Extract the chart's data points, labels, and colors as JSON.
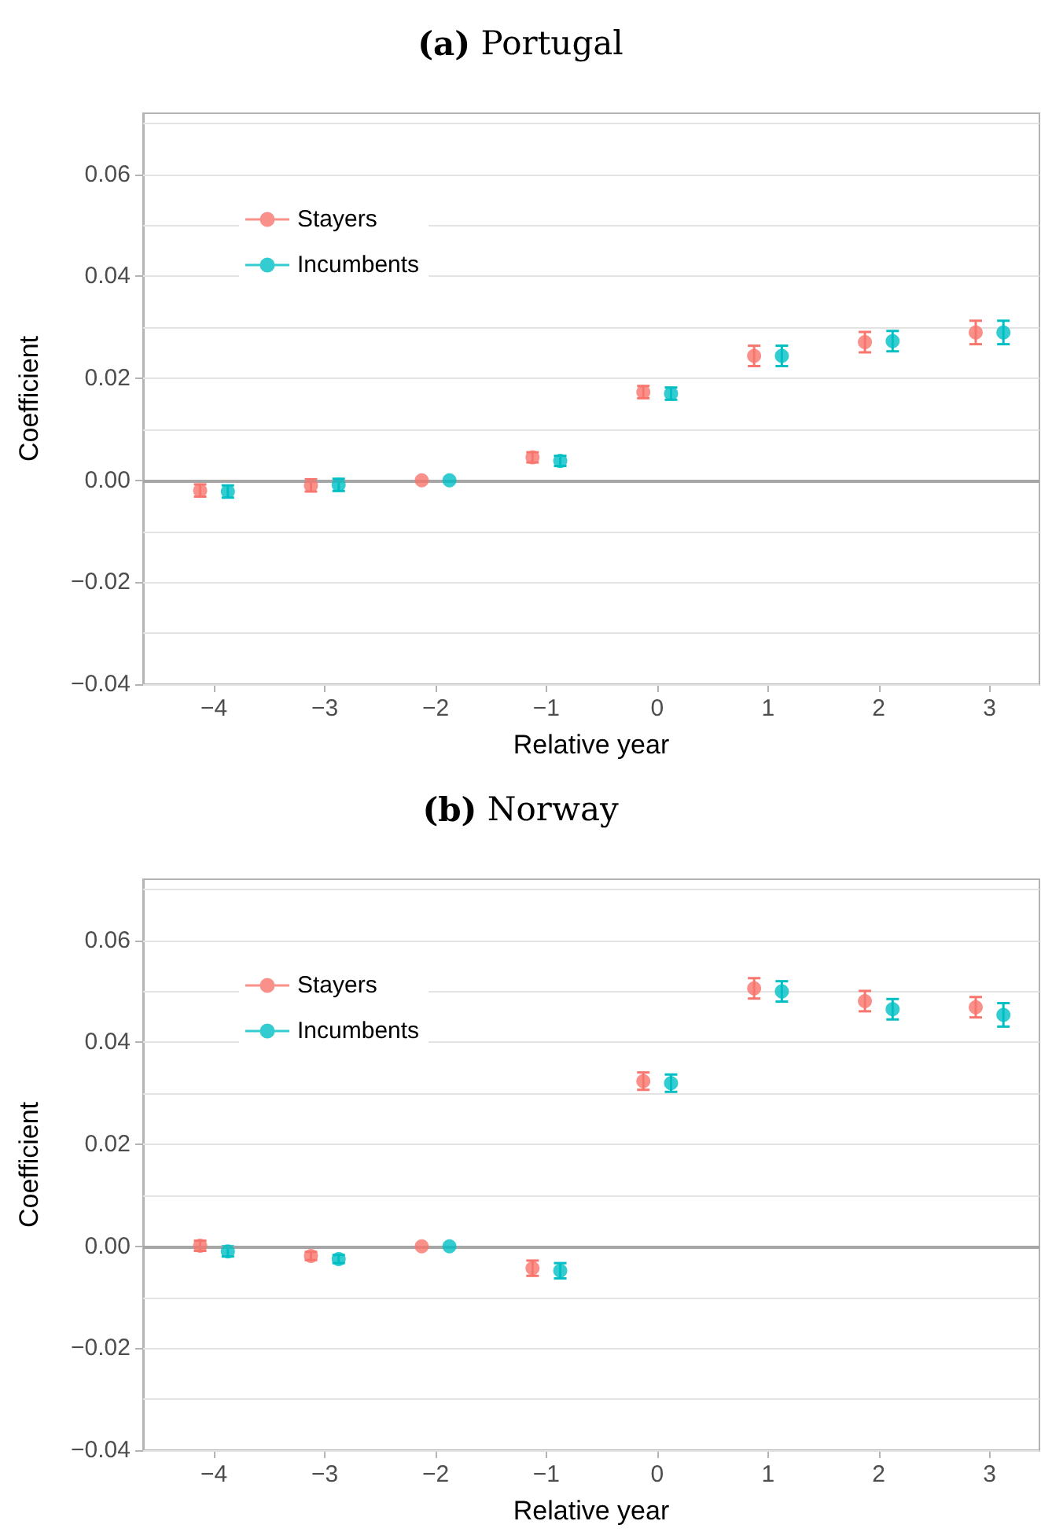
{
  "chart_data": [
    {
      "type": "scatter",
      "title": "(a) Portugal",
      "xlabel": "Relative year",
      "ylabel": "Coefficient",
      "marker": "circle",
      "grid": "y",
      "legend": "top left",
      "xlim": [
        -4.64,
        3.45
      ],
      "xticks": [
        {
          "value": -4,
          "label": "−4"
        },
        {
          "value": -3,
          "label": "−3"
        },
        {
          "value": -2,
          "label": "−2"
        },
        {
          "value": -1,
          "label": "−1"
        },
        0,
        1,
        2,
        3
      ],
      "ylim": [
        -0.04,
        0.072
      ],
      "yticks": [
        {
          "value": -0.04,
          "label": "−0.04"
        },
        {
          "value": -0.03,
          "label": null
        },
        {
          "value": -0.02,
          "label": "−0.02"
        },
        {
          "value": -0.01,
          "label": null
        },
        {
          "value": 0,
          "label": "0.00"
        },
        {
          "value": 0.01,
          "label": null
        },
        {
          "value": 0.02,
          "label": "0.02"
        },
        {
          "value": 0.03,
          "label": null
        },
        {
          "value": 0.04,
          "label": "0.04"
        },
        {
          "value": 0.05,
          "label": null
        },
        {
          "value": 0.06,
          "label": "0.06"
        },
        {
          "value": 0.07,
          "label": null
        }
      ],
      "ref_lines": [
        {
          "axis": "y",
          "value": 0,
          "color": "#a6a6a6"
        }
      ],
      "series": [
        {
          "name": "Stayers",
          "color": "#f8766d",
          "x": [
            -4.125,
            -3.125,
            -2.125,
            -1.125,
            -0.125,
            0.875,
            1.875,
            2.875
          ],
          "values": [
            -0.002,
            -0.001,
            0,
            0.0045,
            0.0173,
            0.0244,
            0.0271,
            0.029
          ],
          "errors": [
            0.0012,
            0.0012,
            null,
            0.001,
            0.0012,
            0.002,
            0.002,
            0.0023
          ]
        },
        {
          "name": "Incumbents",
          "color": "#00bfc4",
          "x": [
            -3.875,
            -2.875,
            -1.875,
            -0.875,
            0.125,
            1.125,
            2.125,
            3.125
          ],
          "values": [
            -0.0022,
            -0.0009,
            0,
            0.0038,
            0.017,
            0.0244,
            0.0273,
            0.029
          ],
          "errors": [
            0.0012,
            0.0012,
            null,
            0.001,
            0.0012,
            0.002,
            0.002,
            0.0023
          ]
        }
      ]
    },
    {
      "type": "scatter",
      "title": "(b) Norway",
      "xlabel": "Relative year",
      "ylabel": "Coefficient",
      "marker": "circle",
      "grid": "y",
      "legend": "top left",
      "xlim": [
        -4.64,
        3.45
      ],
      "xticks": [
        {
          "value": -4,
          "label": "−4"
        },
        {
          "value": -3,
          "label": "−3"
        },
        {
          "value": -2,
          "label": "−2"
        },
        {
          "value": -1,
          "label": "−1"
        },
        0,
        1,
        2,
        3
      ],
      "ylim": [
        -0.04,
        0.072
      ],
      "yticks": [
        {
          "value": -0.04,
          "label": "−0.04"
        },
        {
          "value": -0.03,
          "label": null
        },
        {
          "value": -0.02,
          "label": "−0.02"
        },
        {
          "value": -0.01,
          "label": null
        },
        {
          "value": 0,
          "label": "0.00"
        },
        {
          "value": 0.01,
          "label": null
        },
        {
          "value": 0.02,
          "label": "0.02"
        },
        {
          "value": 0.03,
          "label": null
        },
        {
          "value": 0.04,
          "label": "0.04"
        },
        {
          "value": 0.05,
          "label": null
        },
        {
          "value": 0.06,
          "label": "0.06"
        },
        {
          "value": 0.07,
          "label": null
        }
      ],
      "ref_lines": [
        {
          "axis": "y",
          "value": 0,
          "color": "#a6a6a6"
        }
      ],
      "series": [
        {
          "name": "Stayers",
          "color": "#f8766d",
          "x": [
            -4.125,
            -3.125,
            -2.125,
            -1.125,
            -0.125,
            0.875,
            1.875,
            2.875
          ],
          "values": [
            0.0001,
            -0.0019,
            0,
            -0.0043,
            0.0324,
            0.0506,
            0.0481,
            0.0469
          ],
          "errors": [
            0.001,
            0.0008,
            null,
            0.0015,
            0.0017,
            0.002,
            0.002,
            0.002
          ]
        },
        {
          "name": "Incumbents",
          "color": "#00bfc4",
          "x": [
            -3.875,
            -2.875,
            -1.875,
            -0.875,
            0.125,
            1.125,
            2.125,
            3.125
          ],
          "values": [
            -0.001,
            -0.0025,
            0,
            -0.0048,
            0.032,
            0.05,
            0.0465,
            0.0454
          ],
          "errors": [
            0.001,
            0.0008,
            null,
            0.0015,
            0.0017,
            0.002,
            0.002,
            0.0023
          ]
        }
      ]
    }
  ]
}
